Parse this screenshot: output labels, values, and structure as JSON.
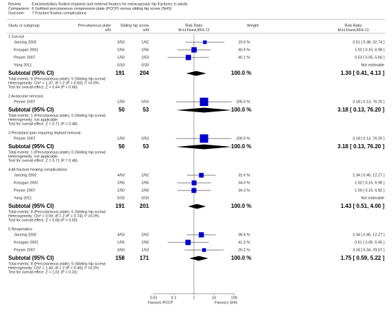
{
  "header": {
    "review_label": "Review:",
    "review": "Extramedullary fixation implants and external fixators for extracapsular hip fractures in adults",
    "comparison_label": "Comparison:",
    "comparison": "6 Gotfried percutaneous compression plate (PCCP) versus sliding hip screw (SHS)",
    "outcome_label": "Outcome:",
    "outcome": "7 Fracture fixation complications"
  },
  "columns": {
    "study": "Study or subgroup",
    "group1": "Percutaneous plate",
    "group1_sub": "n/N",
    "group2": "Sliding hip screw",
    "group2_sub": "n/N",
    "plot": "Risk Ratio",
    "plot_sub": "M-H,Fixed,95% CI",
    "weight": "Weight",
    "result": "Risk Ratio",
    "result_sub": "M-H,Fixed,95% CI"
  },
  "axis": {
    "lim": [
      0.01,
      100
    ],
    "ticks": [
      0.01,
      0.1,
      1,
      10,
      100
    ],
    "left_label": "Favours PCCP",
    "right_label": "Favours SHS"
  },
  "groups": [
    {
      "title": "1 Cut-out",
      "studies": [
        {
          "name": "Janzing 2002",
          "g1": "3/53",
          "g2": "1/62",
          "weight": 19.0,
          "weight_label": "19.0 %",
          "rr": 3.51,
          "ci": [
            0.38,
            32.74
          ],
          "result": "3.51 [ 0.38, 32.74 ]"
        },
        {
          "name": "Kosygan 2002",
          "g1": "2/55",
          "g2": "2/56",
          "weight": 40.9,
          "weight_label": "40.9 %",
          "rr": 1.02,
          "ci": [
            0.15,
            6.98
          ],
          "result": "1.02 [ 0.15, 6.98 ]"
        },
        {
          "name": "Peyser 2007",
          "g1": "1/50",
          "g2": "2/53",
          "weight": 40.1,
          "weight_label": "40.1 %",
          "rr": 0.53,
          "ci": [
            0.05,
            5.66
          ],
          "result": "0.53 [ 0.05, 5.66 ]"
        },
        {
          "name": "Yang 2011",
          "g1": "0/33",
          "g2": "0/33",
          "result": "Not estimable"
        }
      ],
      "subtotal": {
        "name": "Subtotal (95% CI)",
        "g1": "191",
        "g2": "204",
        "weight_label": "100.0 %",
        "rr": 1.3,
        "ci": [
          0.41,
          4.13
        ],
        "result": "1.30 [ 0.41, 4.13 ]"
      },
      "events": "Total events: 6 (Percutaneous plate), 5 (Sliding hip screw)",
      "heterogeneity": "Heterogeneity: Chi² = 1.37, df = 2 (P = 0.50); I² =0.0%",
      "test": "Test for overall effect: Z = 0.44 (P = 0.66)"
    },
    {
      "title": "2 Avascular necrosis",
      "studies": [
        {
          "name": "Peyser 2007",
          "g1": "1/50",
          "g2": "0/53",
          "weight": 100.0,
          "weight_label": "100.0 %",
          "rr": 3.18,
          "ci": [
            0.13,
            76.2
          ],
          "result": "3.18 [ 0.13, 76.20 ]"
        }
      ],
      "subtotal": {
        "name": "Subtotal (95% CI)",
        "g1": "50",
        "g2": "53",
        "weight_label": "100.0 %",
        "rr": 3.18,
        "ci": [
          0.13,
          76.2
        ],
        "result": "3.18 [ 0.13, 76.20 ]"
      },
      "events": "Total events: 1 (Percutaneous plate), 0 (Sliding hip screw)",
      "heterogeneity": "Heterogeneity: not applicable",
      "test": "Test for overall effect: Z = 0.71 (P = 0.48)"
    },
    {
      "title": "3 Persistant pain requiring implant removal",
      "studies": [
        {
          "name": "Peyser 2007",
          "g1": "1/50",
          "g2": "0/53",
          "weight": 100.0,
          "weight_label": "100.0 %",
          "rr": 3.18,
          "ci": [
            0.13,
            76.2
          ],
          "result": "3.18 [ 0.13, 76.20 ]"
        }
      ],
      "subtotal": {
        "name": "Subtotal (95% CI)",
        "g1": "50",
        "g2": "53",
        "weight_label": "100.0 %",
        "rr": 3.18,
        "ci": [
          0.13,
          76.2
        ],
        "result": "3.18 [ 0.13, 76.20 ]"
      },
      "events": "Total events: 1 (Percutaneous plate), 0 (Sliding hip screw)",
      "heterogeneity": "Heterogeneity: not applicable",
      "test": "Test for overall effect: Z = 0.71 (P = 0.48)"
    },
    {
      "title": "4 All fracture healing complications",
      "studies": [
        {
          "name": "Janzing 2002",
          "g1": "4/53",
          "g2": "2/62",
          "weight": 31.6,
          "weight_label": "31.6 %",
          "rr": 2.34,
          "ci": [
            0.45,
            12.27
          ],
          "result": "2.34 [ 0.45, 12.27 ]"
        },
        {
          "name": "Kosygan 2002",
          "g1": "2/55",
          "g2": "2/56",
          "weight": 34.0,
          "weight_label": "34.0 %",
          "rr": 1.02,
          "ci": [
            0.15,
            6.98
          ],
          "result": "1.02 [ 0.15, 6.98 ]"
        },
        {
          "name": "Peyser 2007",
          "g1": "2/50",
          "g2": "2/50",
          "weight": 34.3,
          "weight_label": "34.3 %",
          "rr": 1.0,
          "ci": [
            0.15,
            6.82
          ],
          "result": "1.00 [ 0.15, 6.82 ]"
        },
        {
          "name": "Yang 2011",
          "g1": "0/33",
          "g2": "0/33",
          "result": "Not estimable"
        }
      ],
      "subtotal": {
        "name": "Subtotal (95% CI)",
        "g1": "191",
        "g2": "201",
        "weight_label": "100.0 %",
        "rr": 1.43,
        "ci": [
          0.51,
          4.0
        ],
        "result": "1.43 [ 0.51, 4.00 ]"
      },
      "events": "Total events: 8 (Percutaneous plate), 6 (Sliding hip screw)",
      "heterogeneity": "Heterogeneity: Chi² = 0.59, df = 2 (P = 0.74); I² =0.0%",
      "test": "Test for overall effect: Z = 0.68 (P = 0.50)"
    },
    {
      "title": "5 Reoperation",
      "studies": [
        {
          "name": "Janzing 2002",
          "g1": "4/53",
          "g2": "2/62",
          "weight": 38.4,
          "weight_label": "38.4 %",
          "rr": 2.34,
          "ci": [
            0.45,
            12.27
          ],
          "result": "2.34 [ 0.45, 12.27 ]"
        },
        {
          "name": "Kosygan 2002",
          "g1": "1/55",
          "g2": "2/56",
          "weight": 41.3,
          "weight_label": "41.3 %",
          "rr": 0.51,
          "ci": [
            0.05,
            5.45
          ],
          "result": "0.51 [ 0.05, 5.45 ]"
        },
        {
          "name": "Peyser 2007",
          "g1": "3/50",
          "g2": "1/53",
          "weight": 20.2,
          "weight_label": "20.2 %",
          "rr": 3.18,
          "ci": [
            0.34,
            29.57
          ],
          "result": "3.18 [ 0.34, 29.57 ]"
        }
      ],
      "subtotal": {
        "name": "Subtotal (95% CI)",
        "g1": "158",
        "g2": "171",
        "weight_label": "100.0 %",
        "rr": 1.75,
        "ci": [
          0.59,
          5.22
        ],
        "result": "1.75 [ 0.59, 5.22 ]"
      },
      "events": "Total events: 8 (Percutaneous plate), 5 (Sliding hip screw)",
      "heterogeneity": "Heterogeneity: Chi² = 1.43, df = 2 (P = 0.49); I² =0.0%",
      "test": "Test for overall effect: Z = 1.01 (P = 0.31)"
    }
  ]
}
